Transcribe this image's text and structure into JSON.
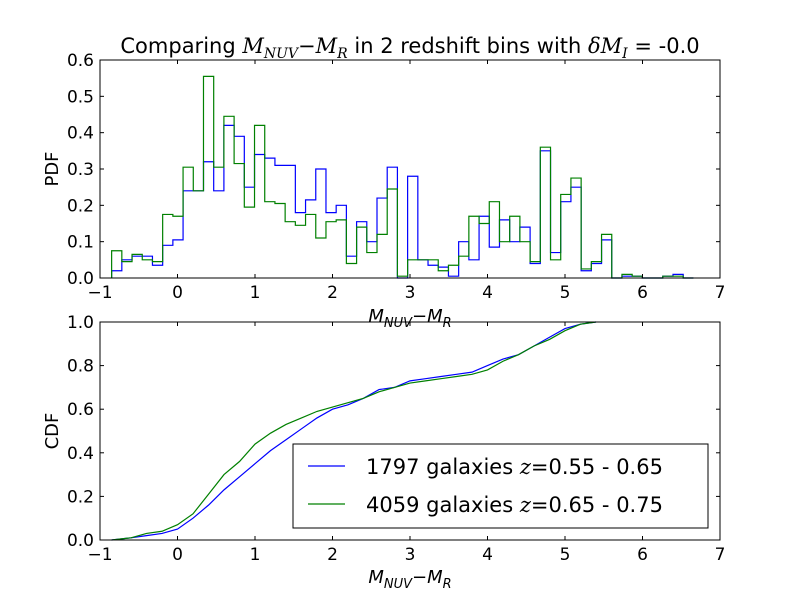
{
  "title": {
    "prefix": "Comparing ",
    "quantity": "M",
    "quantity_sub1": "NUV",
    "quantity_minus": "−",
    "quantity_b": "M",
    "quantity_sub2": "R",
    "middle": " in 2 redshift bins with ",
    "delta": "δM",
    "delta_sub": "I",
    "suffix": " = -0.0"
  },
  "colors": {
    "blue": "#0000ff",
    "green": "#008000"
  },
  "chart_data": [
    {
      "type": "step-histogram",
      "ylabel": "PDF",
      "xlabel": {
        "a": "M",
        "a_sub": "NUV",
        "minus": "−",
        "b": "M",
        "b_sub": "R"
      },
      "xlim": [
        -1,
        7
      ],
      "ylim": [
        0,
        0.6
      ],
      "xticks": [
        -1,
        0,
        1,
        2,
        3,
        4,
        5,
        6,
        7
      ],
      "yticks": [
        0.0,
        0.1,
        0.2,
        0.3,
        0.4,
        0.5,
        0.6
      ],
      "xtick_labels": [
        "−1",
        "0",
        "1",
        "2",
        "3",
        "4",
        "5",
        "6",
        "7"
      ],
      "ytick_labels": [
        "0.0",
        "0.1",
        "0.2",
        "0.3",
        "0.4",
        "0.5",
        "0.6"
      ],
      "bin_start": -0.85,
      "bin_width": 0.1317,
      "series": [
        {
          "color_key": "blue",
          "values": [
            0.02,
            0.05,
            0.06,
            0.06,
            0.035,
            0.09,
            0.105,
            0.24,
            0.24,
            0.32,
            0.24,
            0.42,
            0.39,
            0.25,
            0.34,
            0.33,
            0.31,
            0.31,
            0.18,
            0.215,
            0.3,
            0.18,
            0.2,
            0.06,
            0.155,
            0.1,
            0.22,
            0.305,
            0.0,
            0.28,
            0.05,
            0.035,
            0.03,
            0.005,
            0.1,
            0.05,
            0.17,
            0.085,
            0.16,
            0.1,
            0.14,
            0.04,
            0.35,
            0.07,
            0.21,
            0.25,
            0.02,
            0.04,
            0.105,
            0.0,
            0.005,
            0.005,
            0.0,
            0.0,
            0.005,
            0.01,
            0.0
          ]
        },
        {
          "color_key": "green",
          "values": [
            0.075,
            0.045,
            0.065,
            0.05,
            0.045,
            0.175,
            0.17,
            0.305,
            0.24,
            0.555,
            0.305,
            0.445,
            0.315,
            0.195,
            0.42,
            0.21,
            0.205,
            0.155,
            0.145,
            0.175,
            0.11,
            0.155,
            0.16,
            0.04,
            0.14,
            0.07,
            0.12,
            0.245,
            0.005,
            0.05,
            0.05,
            0.05,
            0.02,
            0.035,
            0.06,
            0.17,
            0.15,
            0.21,
            0.1,
            0.17,
            0.1,
            0.045,
            0.36,
            0.05,
            0.23,
            0.275,
            0.025,
            0.045,
            0.12,
            0.0,
            0.01,
            0.005,
            0.0,
            0.0,
            0.005,
            0.005,
            0.0
          ]
        }
      ]
    },
    {
      "type": "line",
      "ylabel": "CDF",
      "xlabel": {
        "a": "M",
        "a_sub": "NUV",
        "minus": "−",
        "b": "M",
        "b_sub": "R"
      },
      "xlim": [
        -1,
        7
      ],
      "ylim": [
        0,
        1
      ],
      "xticks": [
        -1,
        0,
        1,
        2,
        3,
        4,
        5,
        6,
        7
      ],
      "yticks": [
        0.0,
        0.2,
        0.4,
        0.6,
        0.8,
        1.0
      ],
      "xtick_labels": [
        "−1",
        "0",
        "1",
        "2",
        "3",
        "4",
        "5",
        "6",
        "7"
      ],
      "ytick_labels": [
        "0.0",
        "0.2",
        "0.4",
        "0.6",
        "0.8",
        "1.0"
      ],
      "legend_position": "lower-right",
      "series": [
        {
          "color_key": "blue",
          "legend_count": "1797 galaxies ",
          "legend_z": "z",
          "legend_range": "=0.55 - 0.65",
          "x": [
            -0.85,
            -0.6,
            -0.4,
            -0.2,
            0.0,
            0.2,
            0.4,
            0.6,
            0.8,
            1.0,
            1.2,
            1.4,
            1.6,
            1.8,
            2.0,
            2.2,
            2.4,
            2.6,
            2.8,
            3.0,
            3.2,
            3.4,
            3.6,
            3.8,
            4.0,
            4.2,
            4.4,
            4.6,
            4.8,
            5.0,
            5.2,
            5.4
          ],
          "y": [
            0.0,
            0.01,
            0.02,
            0.03,
            0.05,
            0.1,
            0.16,
            0.23,
            0.29,
            0.35,
            0.41,
            0.46,
            0.51,
            0.56,
            0.6,
            0.62,
            0.65,
            0.69,
            0.7,
            0.73,
            0.74,
            0.75,
            0.76,
            0.77,
            0.8,
            0.83,
            0.85,
            0.89,
            0.93,
            0.97,
            0.99,
            1.0
          ]
        },
        {
          "color_key": "green",
          "legend_count": "4059 galaxies ",
          "legend_z": "z",
          "legend_range": "=0.65 - 0.75",
          "x": [
            -0.85,
            -0.6,
            -0.4,
            -0.2,
            0.0,
            0.2,
            0.4,
            0.6,
            0.8,
            1.0,
            1.2,
            1.4,
            1.6,
            1.8,
            2.0,
            2.2,
            2.4,
            2.6,
            2.8,
            3.0,
            3.2,
            3.4,
            3.6,
            3.8,
            4.0,
            4.2,
            4.4,
            4.6,
            4.8,
            5.0,
            5.2,
            5.4
          ],
          "y": [
            0.0,
            0.01,
            0.03,
            0.04,
            0.07,
            0.12,
            0.21,
            0.3,
            0.36,
            0.44,
            0.49,
            0.53,
            0.56,
            0.59,
            0.61,
            0.63,
            0.65,
            0.68,
            0.7,
            0.72,
            0.73,
            0.74,
            0.75,
            0.76,
            0.78,
            0.82,
            0.85,
            0.89,
            0.92,
            0.96,
            0.99,
            1.0
          ]
        }
      ]
    }
  ]
}
